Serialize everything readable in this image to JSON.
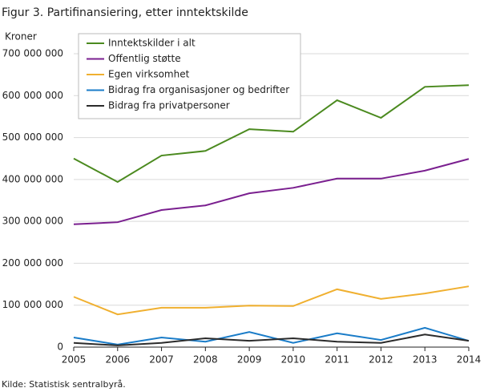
{
  "chart_data": {
    "type": "line",
    "title": "Figur 3. Partifinansiering, etter inntektskilde",
    "y_label": "Kroner",
    "source": "Kilde: Statistisk sentralbyrå.",
    "x": [
      2005,
      2006,
      2007,
      2008,
      2009,
      2010,
      2011,
      2012,
      2013,
      2014
    ],
    "xlim": [
      2005,
      2014
    ],
    "xticks": [
      2005,
      2006,
      2007,
      2008,
      2009,
      2010,
      2011,
      2012,
      2013,
      2014
    ],
    "ylim": [
      0,
      700000000
    ],
    "yticks": [
      {
        "value": 0,
        "label": "0"
      },
      {
        "value": 100000000,
        "label": "100 000 000"
      },
      {
        "value": 200000000,
        "label": "200 000 000"
      },
      {
        "value": 300000000,
        "label": "300 000 000"
      },
      {
        "value": 400000000,
        "label": "400 000 000"
      },
      {
        "value": 500000000,
        "label": "500 000 000"
      },
      {
        "value": 600000000,
        "label": "600 000 000"
      },
      {
        "value": 700000000,
        "label": "700 000 000"
      }
    ],
    "grid": true,
    "legend": "top-left",
    "series": [
      {
        "name": "Inntektskilder i alt",
        "color": "#4b8a1f",
        "values": [
          450000000,
          394000000,
          457000000,
          468000000,
          520000000,
          514000000,
          589000000,
          547000000,
          621000000,
          625000000
        ]
      },
      {
        "name": "Offentlig støtte",
        "color": "#7a1f8f",
        "values": [
          293000000,
          298000000,
          327000000,
          338000000,
          367000000,
          380000000,
          402000000,
          402000000,
          421000000,
          449000000
        ]
      },
      {
        "name": "Egen virksomhet",
        "color": "#f0b030",
        "values": [
          120000000,
          78000000,
          94000000,
          94000000,
          99000000,
          98000000,
          138000000,
          115000000,
          128000000,
          145000000
        ]
      },
      {
        "name": "Bidrag fra organisasjoner og bedrifter",
        "color": "#1a7cc8",
        "values": [
          23000000,
          6000000,
          23000000,
          13000000,
          36000000,
          10000000,
          33000000,
          17000000,
          46000000,
          15000000
        ]
      },
      {
        "name": "Bidrag fra privatpersoner",
        "color": "#2b2b2b",
        "values": [
          10000000,
          4000000,
          10000000,
          21000000,
          15000000,
          21000000,
          13000000,
          10000000,
          30000000,
          15000000
        ]
      }
    ]
  }
}
